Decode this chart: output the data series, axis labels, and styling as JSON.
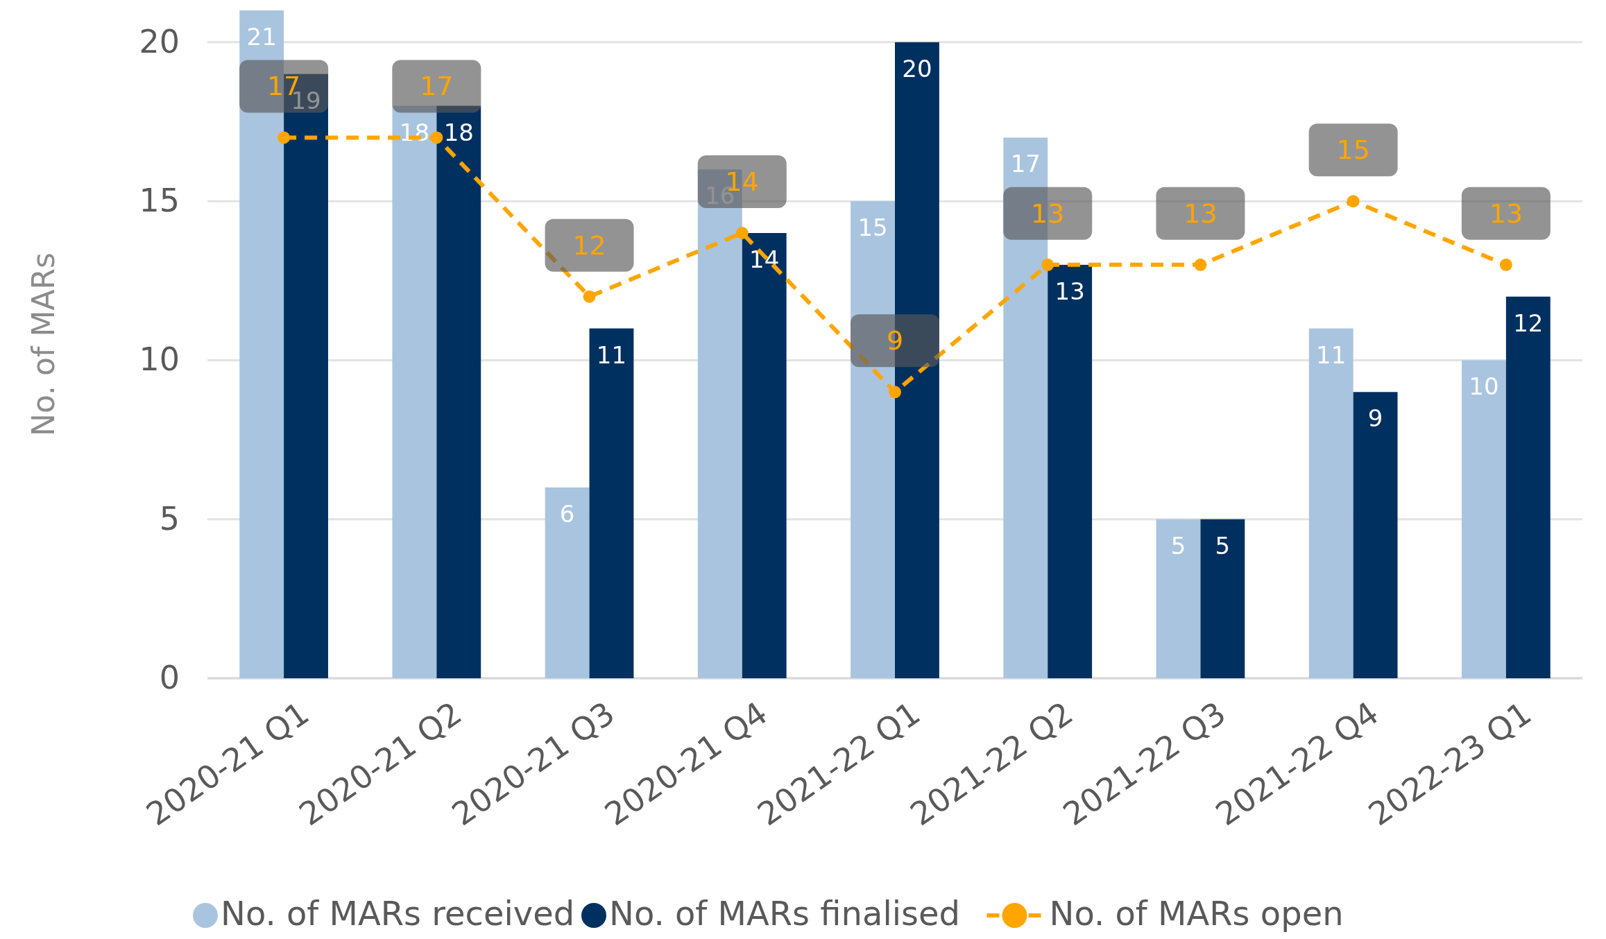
{
  "chart_data": {
    "type": "bar",
    "ylabel": "No. of MARs",
    "categories": [
      "2020-21 Q1",
      "2020-21 Q2",
      "2020-21 Q3",
      "2020-21 Q4",
      "2021-22 Q1",
      "2021-22 Q2",
      "2021-22 Q3",
      "2021-22 Q4",
      "2022-23 Q1"
    ],
    "series": [
      {
        "name": "No. of MARs received",
        "color": "#a9c4df",
        "values": [
          21,
          18,
          6,
          16,
          15,
          17,
          5,
          11,
          10
        ]
      },
      {
        "name": "No. of MARs finalised",
        "color": "#003060",
        "values": [
          19,
          18,
          11,
          14,
          20,
          13,
          5,
          9,
          12
        ]
      },
      {
        "name": "No. of MARs open",
        "type": "line",
        "color": "#ffa500",
        "marker": "circle",
        "line_style": "dashed",
        "values": [
          17,
          17,
          12,
          14,
          9,
          13,
          13,
          15,
          13
        ]
      }
    ],
    "ylim": [
      0,
      21
    ],
    "yticks": [
      0,
      5,
      10,
      15,
      20
    ],
    "grid": "y",
    "legend": "bottom",
    "data_labels": true
  }
}
